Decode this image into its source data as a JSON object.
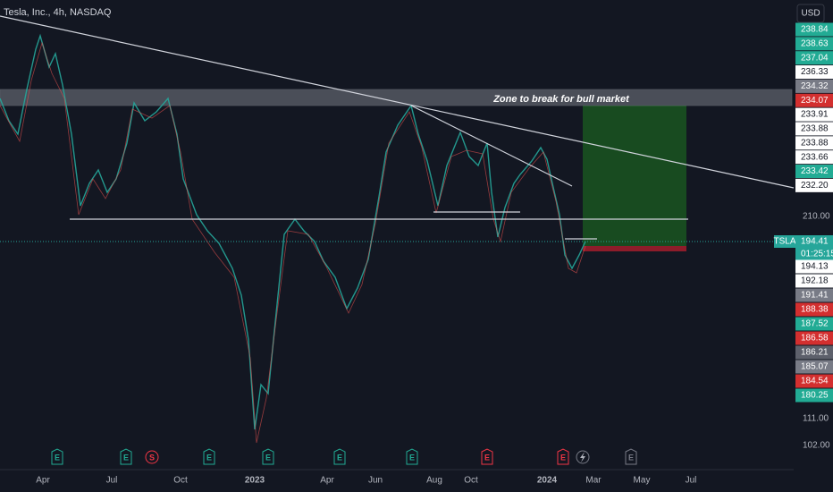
{
  "header": {
    "title": "Tesla, Inc., 4h, NASDAQ",
    "currency": "USD"
  },
  "annotation": "Zone to break for bull market",
  "upper_badges": [
    {
      "label": "238.84",
      "color": "#22ab94"
    },
    {
      "label": "238.63",
      "color": "#22ab94"
    },
    {
      "label": "237.04",
      "color": "#22ab94"
    },
    {
      "label": "236.33",
      "color": "#ffffff"
    },
    {
      "label": "234.32",
      "color": "#787b86"
    },
    {
      "label": "234.07",
      "color": "#d32f2f"
    },
    {
      "label": "233.91",
      "color": "#ffffff"
    },
    {
      "label": "233.88",
      "color": "#ffffff"
    },
    {
      "label": "233.88",
      "color": "#ffffff"
    },
    {
      "label": "233.66",
      "color": "#ffffff"
    },
    {
      "label": "233.42",
      "color": "#22ab94"
    },
    {
      "label": "232.20",
      "color": "#ffffff"
    }
  ],
  "symbol_badge": {
    "symbol": "TSLA",
    "price": "194.41",
    "countdown": "01:25:15"
  },
  "lower_badges": [
    {
      "label": "194.13",
      "color": "#ffffff"
    },
    {
      "label": "192.18",
      "color": "#ffffff"
    },
    {
      "label": "191.41",
      "color": "#787b86"
    },
    {
      "label": "188.38",
      "color": "#d32f2f"
    },
    {
      "label": "187.52",
      "color": "#22ab94"
    },
    {
      "label": "186.58",
      "color": "#d32f2f"
    },
    {
      "label": "186.21",
      "color": "#5d606b"
    },
    {
      "label": "185.07",
      "color": "#787b86"
    },
    {
      "label": "184.54",
      "color": "#d32f2f"
    },
    {
      "label": "180.25",
      "color": "#22ab94"
    }
  ],
  "price_scale": [
    "210.00",
    "111.00",
    "102.00"
  ],
  "time_axis": [
    "Apr",
    "Jul",
    "Oct",
    "2023",
    "Apr",
    "Jun",
    "Aug",
    "Oct",
    "2024",
    "Mar",
    "May",
    "Jul"
  ],
  "events": [
    {
      "letter": "E",
      "color": "#22ab94"
    },
    {
      "letter": "E",
      "color": "#22ab94"
    },
    {
      "letter": "S",
      "color": "#f23645"
    },
    {
      "letter": "E",
      "color": "#22ab94"
    },
    {
      "letter": "E",
      "color": "#22ab94"
    },
    {
      "letter": "E",
      "color": "#22ab94"
    },
    {
      "letter": "E",
      "color": "#22ab94"
    },
    {
      "letter": "E",
      "color": "#f23645"
    },
    {
      "letter": "E",
      "color": "#f23645"
    },
    {
      "letter": "E",
      "color": "#787b86"
    }
  ]
}
